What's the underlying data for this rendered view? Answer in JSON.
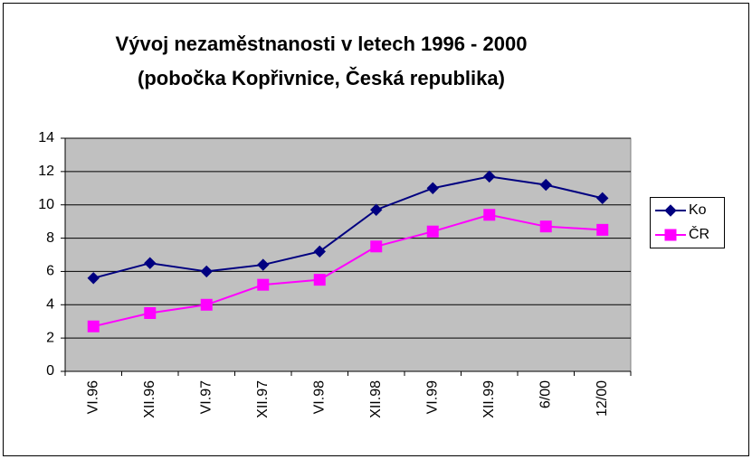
{
  "chart_data": {
    "type": "line",
    "title_lines": [
      "Vývoj nezaměstnanosti v letech 1996 - 2000",
      "(pobočka Kopřivnice, Česká republika)"
    ],
    "categories": [
      "VI.96",
      "XII.96",
      "VI.97",
      "XII.97",
      "VI.98",
      "XII.98",
      "VI.99",
      "XII.99",
      "6/00",
      "12/00"
    ],
    "series": [
      {
        "name": "Ko",
        "color": "#000080",
        "marker": "diamond",
        "values": [
          5.6,
          6.5,
          6.0,
          6.4,
          7.2,
          9.7,
          11.0,
          11.7,
          11.2,
          10.4
        ]
      },
      {
        "name": "ČR",
        "color": "#ff00ff",
        "marker": "square",
        "values": [
          2.7,
          3.5,
          4.0,
          5.2,
          5.5,
          7.5,
          8.4,
          9.4,
          8.7,
          8.5
        ]
      }
    ],
    "ylim": [
      0,
      14
    ],
    "yticks": [
      0,
      2,
      4,
      6,
      8,
      10,
      12,
      14
    ],
    "grid": true,
    "legend": "right"
  }
}
